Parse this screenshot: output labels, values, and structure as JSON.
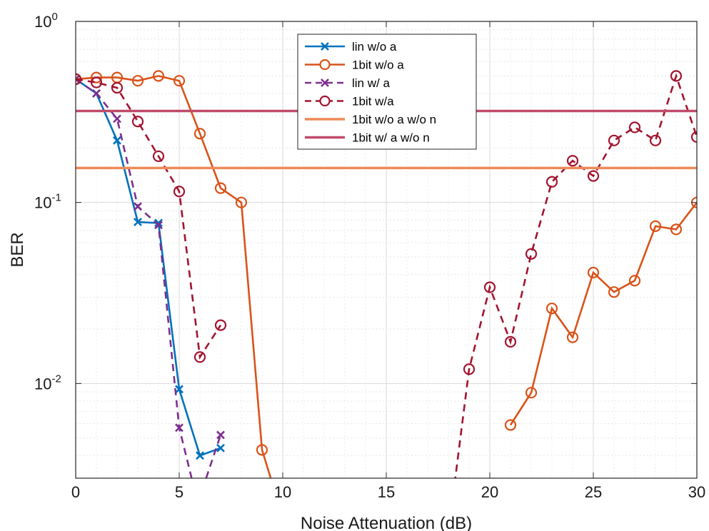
{
  "chart_data": {
    "type": "line",
    "title": "",
    "xlabel": "Noise Attenuation (dB)",
    "ylabel": "BER",
    "xlim": [
      0,
      30
    ],
    "ylim": [
      0.003,
      1
    ],
    "yscale": "log",
    "grid": true,
    "legend_position": "top-center",
    "x_ticks": [
      0,
      5,
      10,
      15,
      20,
      25,
      30
    ],
    "x_tick_labels": [
      "0",
      "5",
      "10",
      "15",
      "20",
      "25",
      "30"
    ],
    "y_ticks": [
      {
        "value": 1,
        "base": "10",
        "exp": "0"
      },
      {
        "value": 0.1,
        "base": "10",
        "exp": "-1"
      },
      {
        "value": 0.01,
        "base": "10",
        "exp": "-2"
      }
    ],
    "series": [
      {
        "name": "lin w/o a",
        "color": "#0072BD",
        "dash": "solid",
        "marker": "x",
        "x": [
          0,
          1,
          2,
          3,
          4,
          5,
          6,
          7
        ],
        "y": [
          0.48,
          0.4,
          0.22,
          0.078,
          0.077,
          0.0093,
          0.004,
          0.0044
        ]
      },
      {
        "name": "1bit w/o a",
        "color": "#D95319",
        "dash": "solid",
        "marker": "o",
        "x": [
          0,
          1,
          2,
          3,
          4,
          5,
          6,
          7,
          8,
          9,
          9.5,
          null,
          21,
          22,
          23,
          24,
          25,
          26,
          27,
          28,
          29,
          30
        ],
        "y": [
          0.48,
          0.49,
          0.49,
          0.47,
          0.5,
          0.47,
          0.24,
          0.12,
          0.1,
          0.0043,
          0.0028,
          null,
          0.0059,
          0.0089,
          0.026,
          0.018,
          0.041,
          0.032,
          0.037,
          0.074,
          0.071,
          0.1
        ]
      },
      {
        "name": "lin w/ a",
        "color": "#7E2F8E",
        "dash": "dashed",
        "marker": "x",
        "x": [
          0,
          1,
          2,
          3,
          4,
          5,
          5.6,
          null,
          6.3,
          7
        ],
        "y": [
          0.48,
          0.4,
          0.29,
          0.095,
          0.075,
          0.0057,
          0.003,
          null,
          0.003,
          0.0052
        ]
      },
      {
        "name": "1bit w/a",
        "color": "#A2142F",
        "dash": "dashed",
        "marker": "o",
        "x": [
          0,
          1,
          2,
          3,
          4,
          5,
          6,
          7,
          null,
          18.3,
          19,
          20,
          21,
          22,
          23,
          24,
          25,
          26,
          27,
          28,
          29,
          30
        ],
        "y": [
          0.48,
          0.46,
          0.43,
          0.28,
          0.18,
          0.115,
          0.014,
          0.021,
          null,
          0.0028,
          0.012,
          0.034,
          0.017,
          0.052,
          0.13,
          0.17,
          0.14,
          0.22,
          0.26,
          0.22,
          0.5,
          0.23
        ]
      },
      {
        "name": "1bit w/o a w/o n",
        "color": "#ED8A58",
        "dash": "solid",
        "marker": "none",
        "x": [
          0,
          30
        ],
        "y": [
          0.155,
          0.155
        ]
      },
      {
        "name": "1bit w/ a w/o n",
        "color": "#C04A6A",
        "dash": "solid",
        "marker": "none",
        "x": [
          0,
          30
        ],
        "y": [
          0.32,
          0.32
        ]
      }
    ]
  }
}
